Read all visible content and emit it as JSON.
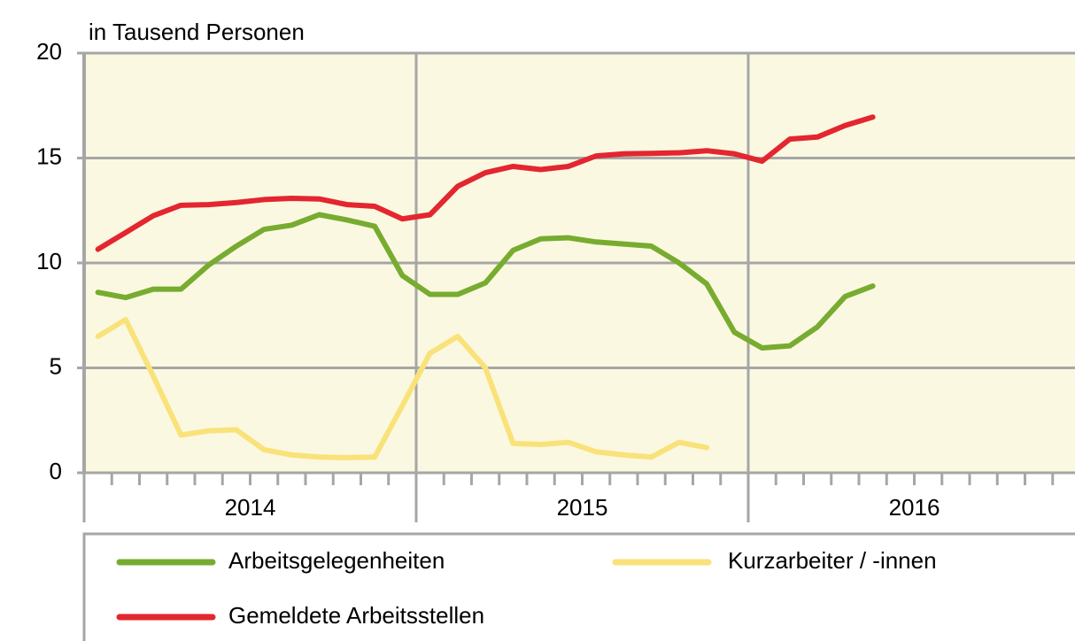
{
  "chart_data": {
    "type": "line",
    "subtitle": "in Tausend Personen",
    "categories": [
      null,
      null,
      null,
      null,
      null,
      null,
      null,
      null,
      null,
      null,
      null,
      null,
      null,
      null,
      null,
      null,
      null,
      null,
      null,
      null,
      null,
      null,
      null,
      null,
      null,
      null,
      null,
      null,
      null,
      null,
      null,
      null,
      null,
      null,
      null,
      null
    ],
    "year_labels": [
      "2014",
      "2015",
      "2016"
    ],
    "series": [
      {
        "name": "Arbeitsgelegenheiten",
        "color": "#77ac30",
        "values": [
          8.6,
          8.35,
          8.75,
          8.75,
          9.9,
          10.8,
          11.6,
          11.8,
          12.3,
          12.05,
          11.75,
          9.4,
          8.5,
          8.5,
          9.05,
          10.6,
          11.15,
          11.2,
          11.0,
          10.9,
          10.8,
          10.0,
          9.0,
          6.7,
          5.95,
          6.05,
          6.95,
          8.4,
          8.9,
          null,
          null,
          null,
          null,
          null,
          null,
          null
        ]
      },
      {
        "name": "Kurzarbeiter / -innen",
        "color": "#f9e27a",
        "values": [
          6.5,
          7.3,
          4.6,
          1.8,
          2.0,
          2.05,
          1.1,
          0.85,
          0.75,
          0.72,
          0.75,
          3.2,
          5.7,
          6.5,
          5.0,
          1.4,
          1.35,
          1.45,
          1.0,
          0.85,
          0.75,
          1.45,
          1.2,
          null,
          null,
          null,
          null,
          null,
          null,
          null,
          null,
          null,
          null,
          null,
          null,
          null
        ]
      },
      {
        "name": "Gemeldete Arbeitsstellen",
        "color": "#e3262f",
        "values": [
          10.65,
          11.45,
          12.25,
          12.75,
          12.78,
          12.88,
          13.02,
          13.08,
          13.05,
          12.78,
          12.7,
          12.1,
          12.3,
          13.65,
          14.3,
          14.6,
          14.45,
          14.6,
          15.1,
          15.2,
          15.22,
          15.25,
          15.35,
          15.2,
          14.85,
          15.9,
          16.0,
          16.55,
          16.95,
          null,
          null,
          null,
          null,
          null,
          null,
          null
        ]
      }
    ],
    "ylim": [
      0,
      20
    ],
    "yticks": [
      0,
      5,
      10,
      15,
      20
    ],
    "grid": true
  }
}
